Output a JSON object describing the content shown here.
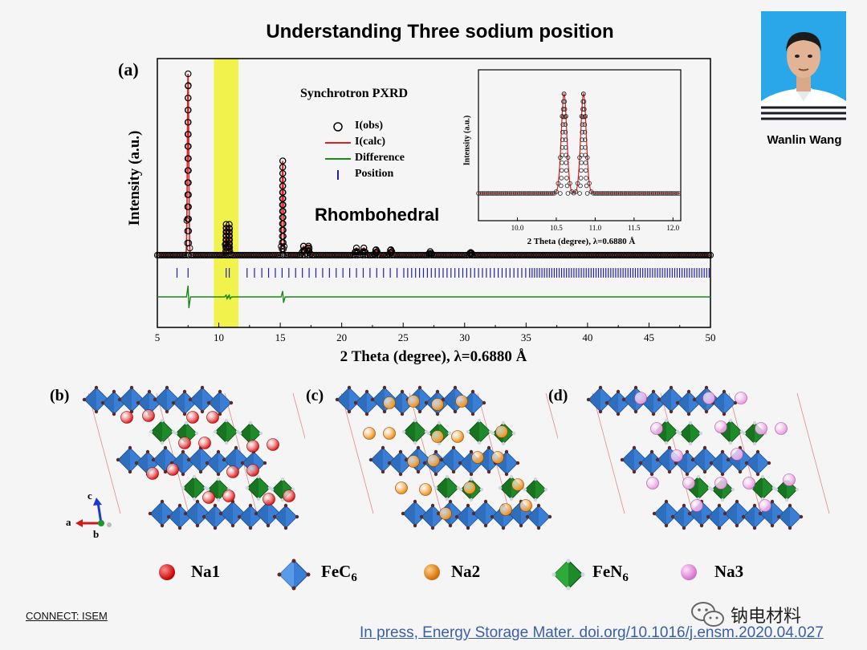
{
  "slide": {
    "title": "Understanding Three sodium position",
    "presenter_name": "Wanlin Wang",
    "connect_label": "CONNECT: ISEM",
    "citation": "In press, Energy Storage Mater. doi.org/10.1016/j.ensm.2020.04.027",
    "wechat_watermark": "钠电材料"
  },
  "colors": {
    "obs": "#000000",
    "calc": "#e02020",
    "difference": "#1a8a1a",
    "position": "#2020b0",
    "highlight": "#f2f23a",
    "na1": "#e01a1a",
    "fec6": "#3a7fd5",
    "na2": "#f08c10",
    "fen6": "#1f8a2a",
    "na3": "#e89ae0"
  },
  "panels": {
    "a": "(a)",
    "b": "(b)",
    "c": "(c)",
    "d": "(d)",
    "axes_a": "a",
    "axes_b": "b",
    "axes_c": "c"
  },
  "chart_data": [
    {
      "type": "line",
      "title": "Synchrotron PXRD",
      "xlabel": "2 Theta (degree), λ=0.6880 Å",
      "ylabel": "Intensity (a.u.)",
      "xlim": [
        5,
        50
      ],
      "xticks": [
        5,
        10,
        15,
        20,
        25,
        30,
        35,
        40,
        45,
        50
      ],
      "highlight_range": [
        9.6,
        11.6
      ],
      "annotation": "Rhombohedral",
      "legend": [
        "I(obs)",
        "I(calc)",
        "Difference",
        "Position"
      ],
      "peaks": [
        {
          "x": 7.5,
          "intensity": 1.0
        },
        {
          "x": 10.6,
          "intensity": 0.17
        },
        {
          "x": 10.85,
          "intensity": 0.17
        },
        {
          "x": 15.2,
          "intensity": 0.52
        },
        {
          "x": 16.9,
          "intensity": 0.05
        },
        {
          "x": 17.3,
          "intensity": 0.05
        },
        {
          "x": 21.2,
          "intensity": 0.04
        },
        {
          "x": 21.8,
          "intensity": 0.04
        },
        {
          "x": 22.8,
          "intensity": 0.03
        },
        {
          "x": 24.0,
          "intensity": 0.03
        },
        {
          "x": 27.2,
          "intensity": 0.02
        },
        {
          "x": 30.5,
          "intensity": 0.015
        }
      ]
    },
    {
      "type": "line",
      "title": "",
      "xlabel": "2 Theta (degree), λ=0.6880 Å",
      "ylabel": "Intensity (a.u.)",
      "xlim": [
        9.5,
        12.1
      ],
      "xticks": [
        10.0,
        10.5,
        11.0,
        11.5,
        12.0
      ],
      "xtick_labels": [
        "10.0",
        "10.5",
        "11.0",
        "11.5",
        "12.0"
      ],
      "peaks": [
        {
          "x": 10.6,
          "intensity": 1.0
        },
        {
          "x": 10.85,
          "intensity": 1.0
        }
      ]
    }
  ],
  "species": {
    "na1": {
      "label": "Na1"
    },
    "fec6": {
      "label": "FeC",
      "sub": "6"
    },
    "na2": {
      "label": "Na2"
    },
    "fen6": {
      "label": "FeN",
      "sub": "6"
    },
    "na3": {
      "label": "Na3"
    }
  }
}
